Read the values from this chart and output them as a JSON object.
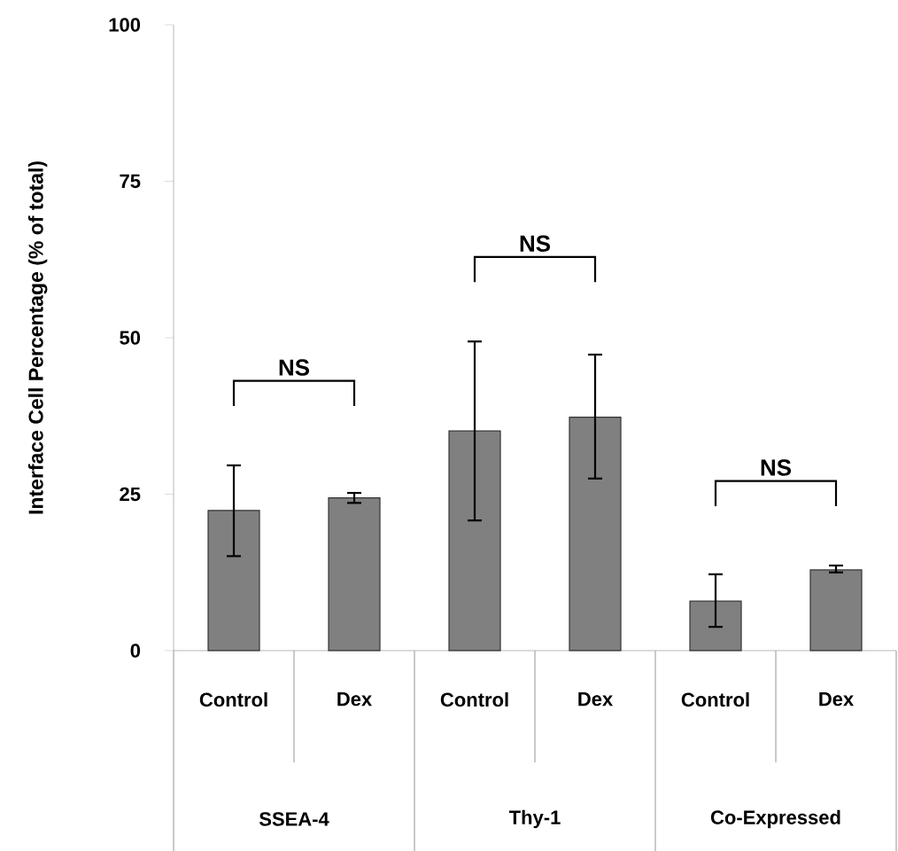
{
  "chart_data": {
    "type": "bar",
    "ylabel": "Interface Cell Percentage (% of total)",
    "categories": [
      "Control",
      "Dex",
      "Control",
      "Dex",
      "Control",
      "Dex"
    ],
    "values": [
      22.4,
      24.4,
      35.1,
      37.3,
      7.9,
      12.9
    ],
    "errors": [
      [
        15.1,
        29.6
      ],
      [
        23.6,
        25.2
      ],
      [
        20.8,
        49.4
      ],
      [
        27.5,
        47.3
      ],
      [
        3.8,
        12.2
      ],
      [
        12.5,
        13.6
      ]
    ],
    "color": "#808080",
    "ylim": [
      0,
      100
    ],
    "yticks": [
      0,
      25,
      50,
      75,
      100
    ],
    "annotations": [
      "NS",
      "NS",
      "NS",
      "SSEA-4",
      "Thy-1",
      "Co-Expressed"
    ]
  }
}
